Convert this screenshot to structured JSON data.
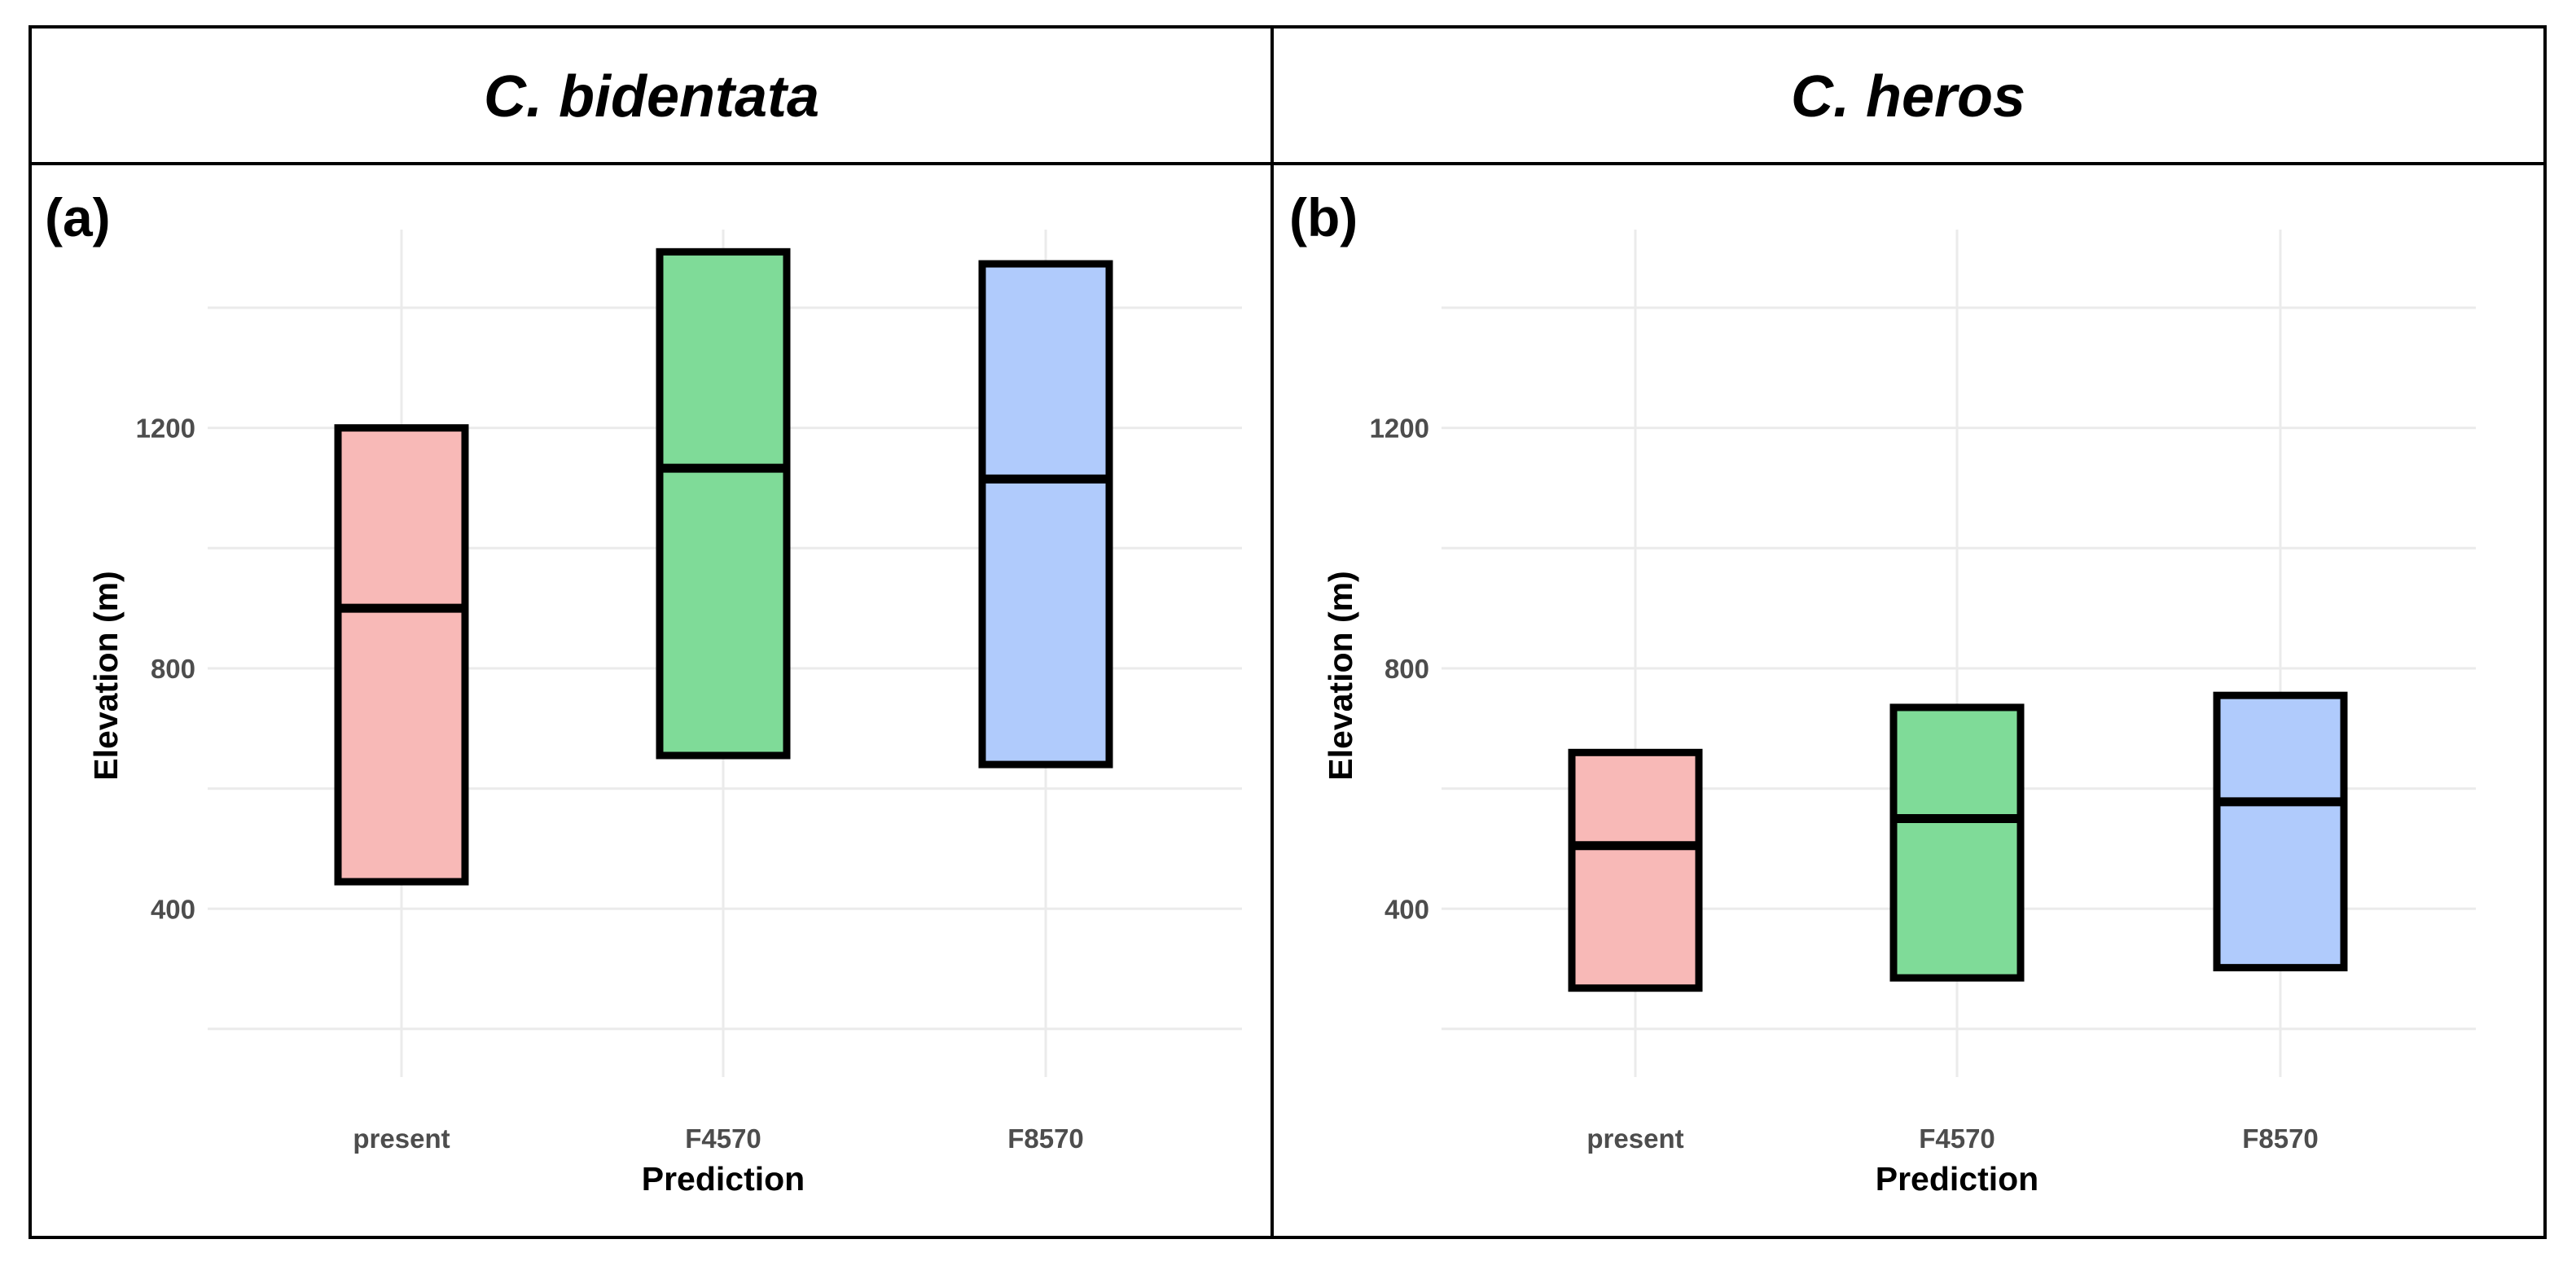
{
  "chart_data": [
    {
      "type": "crossbar",
      "species": "C. bidentata",
      "panel_label": "(a)",
      "xlabel": "Prediction",
      "ylabel": "Elevation (m)",
      "ylim": [
        120,
        1530
      ],
      "yticks": [
        400,
        800,
        1200
      ],
      "categories": [
        "present",
        "F4570",
        "F8570"
      ],
      "colors": [
        "#f8b9b7",
        "#7fdb98",
        "#b0cbfc"
      ],
      "series": [
        {
          "name": "present",
          "min": 445,
          "median": 900,
          "max": 1200
        },
        {
          "name": "F4570",
          "min": 655,
          "median": 1133,
          "max": 1493
        },
        {
          "name": "F8570",
          "min": 640,
          "median": 1115,
          "max": 1473
        }
      ]
    },
    {
      "type": "crossbar",
      "species": "C. heros",
      "panel_label": "(b)",
      "xlabel": "Prediction",
      "ylabel": "Elevation (m)",
      "ylim": [
        120,
        1530
      ],
      "yticks": [
        400,
        800,
        1200
      ],
      "categories": [
        "present",
        "F4570",
        "F8570"
      ],
      "colors": [
        "#f8b9b7",
        "#7fdb98",
        "#b0cbfc"
      ],
      "series": [
        {
          "name": "present",
          "min": 268,
          "median": 505,
          "max": 660
        },
        {
          "name": "F4570",
          "min": 285,
          "median": 550,
          "max": 735
        },
        {
          "name": "F8570",
          "min": 302,
          "median": 578,
          "max": 755
        }
      ]
    }
  ]
}
